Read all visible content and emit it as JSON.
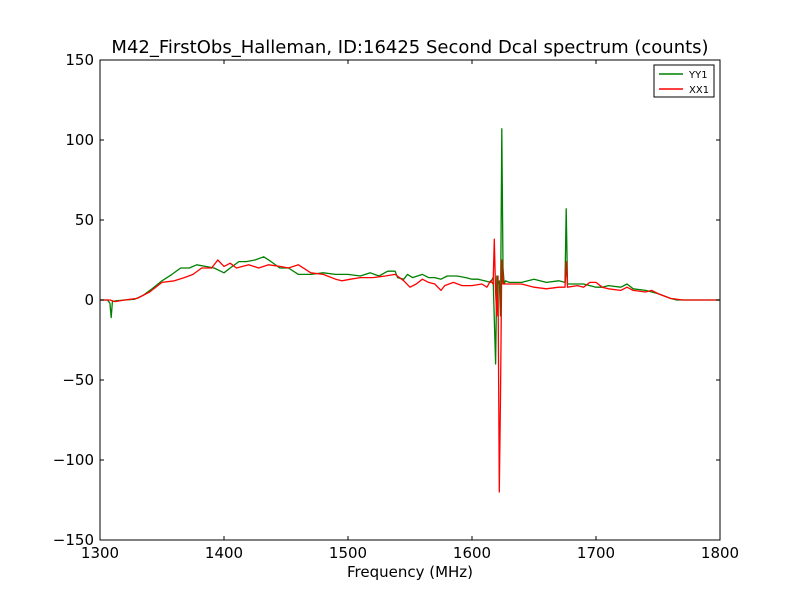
{
  "chart_data": {
    "type": "line",
    "title": "M42_FirstObs_Halleman, ID:16425 Second Dcal spectrum (counts)",
    "xlabel": "Frequency (MHz)",
    "ylabel": "",
    "xlim": [
      1300,
      1800
    ],
    "ylim": [
      -150,
      150
    ],
    "xticks": [
      1300,
      1400,
      1500,
      1600,
      1700,
      1800
    ],
    "yticks": [
      -150,
      -100,
      -50,
      0,
      50,
      100,
      150
    ],
    "grid": false,
    "legend_position": "top-right",
    "series": [
      {
        "name": "YY1",
        "color": "#008000",
        "points": [
          [
            1300,
            0
          ],
          [
            1306,
            0
          ],
          [
            1308,
            -2
          ],
          [
            1309,
            -11
          ],
          [
            1310,
            -1
          ],
          [
            1313,
            -0.5
          ],
          [
            1320,
            0
          ],
          [
            1328,
            0.5
          ],
          [
            1335,
            3
          ],
          [
            1342,
            7
          ],
          [
            1350,
            12
          ],
          [
            1358,
            16
          ],
          [
            1365,
            20
          ],
          [
            1372,
            20
          ],
          [
            1378,
            22
          ],
          [
            1385,
            21
          ],
          [
            1392,
            20
          ],
          [
            1400,
            17
          ],
          [
            1405,
            20
          ],
          [
            1412,
            24
          ],
          [
            1418,
            24
          ],
          [
            1425,
            25
          ],
          [
            1432,
            27
          ],
          [
            1438,
            24
          ],
          [
            1445,
            20
          ],
          [
            1452,
            20
          ],
          [
            1460,
            16
          ],
          [
            1470,
            16
          ],
          [
            1480,
            17
          ],
          [
            1490,
            16
          ],
          [
            1500,
            16
          ],
          [
            1510,
            15
          ],
          [
            1518,
            17
          ],
          [
            1525,
            15
          ],
          [
            1532,
            18
          ],
          [
            1538,
            18
          ],
          [
            1540,
            14
          ],
          [
            1545,
            13
          ],
          [
            1548,
            16
          ],
          [
            1552,
            14
          ],
          [
            1556,
            15
          ],
          [
            1560,
            16
          ],
          [
            1565,
            14
          ],
          [
            1570,
            14
          ],
          [
            1575,
            13
          ],
          [
            1580,
            15
          ],
          [
            1588,
            15
          ],
          [
            1595,
            14
          ],
          [
            1600,
            13
          ],
          [
            1605,
            13
          ],
          [
            1610,
            12
          ],
          [
            1615,
            11
          ],
          [
            1617,
            14
          ],
          [
            1619,
            -40
          ],
          [
            1620,
            15
          ],
          [
            1621,
            10
          ],
          [
            1622,
            12
          ],
          [
            1623,
            -10
          ],
          [
            1624,
            107
          ],
          [
            1625,
            20
          ],
          [
            1626,
            10
          ],
          [
            1627,
            12
          ],
          [
            1630,
            11
          ],
          [
            1640,
            11
          ],
          [
            1650,
            13
          ],
          [
            1660,
            11
          ],
          [
            1670,
            12
          ],
          [
            1675,
            11
          ],
          [
            1676,
            57
          ],
          [
            1677,
            10
          ],
          [
            1685,
            10
          ],
          [
            1690,
            10
          ],
          [
            1700,
            8
          ],
          [
            1705,
            8
          ],
          [
            1710,
            9
          ],
          [
            1720,
            8
          ],
          [
            1725,
            10
          ],
          [
            1730,
            7
          ],
          [
            1740,
            6
          ],
          [
            1745,
            5
          ],
          [
            1750,
            4
          ],
          [
            1760,
            1
          ],
          [
            1765,
            0
          ],
          [
            1770,
            0
          ],
          [
            1780,
            0
          ],
          [
            1790,
            0
          ],
          [
            1800,
            0
          ]
        ]
      },
      {
        "name": "XX1",
        "color": "#ff0000",
        "points": [
          [
            1300,
            0
          ],
          [
            1308,
            0
          ],
          [
            1312,
            -1
          ],
          [
            1320,
            0
          ],
          [
            1330,
            1
          ],
          [
            1340,
            5
          ],
          [
            1350,
            11
          ],
          [
            1360,
            12
          ],
          [
            1368,
            14
          ],
          [
            1375,
            16
          ],
          [
            1382,
            20
          ],
          [
            1390,
            20
          ],
          [
            1395,
            25
          ],
          [
            1400,
            21
          ],
          [
            1405,
            23
          ],
          [
            1410,
            20
          ],
          [
            1420,
            22
          ],
          [
            1428,
            20
          ],
          [
            1436,
            22
          ],
          [
            1445,
            21
          ],
          [
            1452,
            20
          ],
          [
            1460,
            22
          ],
          [
            1470,
            17
          ],
          [
            1480,
            16
          ],
          [
            1490,
            13
          ],
          [
            1495,
            12
          ],
          [
            1502,
            13
          ],
          [
            1510,
            14
          ],
          [
            1520,
            14
          ],
          [
            1530,
            15
          ],
          [
            1538,
            16
          ],
          [
            1545,
            12
          ],
          [
            1550,
            8
          ],
          [
            1555,
            10
          ],
          [
            1560,
            13
          ],
          [
            1565,
            11
          ],
          [
            1570,
            10
          ],
          [
            1575,
            6
          ],
          [
            1578,
            9
          ],
          [
            1585,
            11
          ],
          [
            1592,
            9
          ],
          [
            1600,
            9
          ],
          [
            1608,
            10
          ],
          [
            1612,
            8
          ],
          [
            1615,
            12
          ],
          [
            1617,
            10
          ],
          [
            1618,
            38
          ],
          [
            1619,
            5
          ],
          [
            1620,
            -10
          ],
          [
            1621,
            15
          ],
          [
            1622,
            -120
          ],
          [
            1623,
            -60
          ],
          [
            1624,
            25
          ],
          [
            1625,
            10
          ],
          [
            1626,
            10
          ],
          [
            1630,
            10
          ],
          [
            1640,
            10
          ],
          [
            1650,
            8
          ],
          [
            1660,
            7
          ],
          [
            1670,
            8
          ],
          [
            1675,
            8
          ],
          [
            1676,
            24
          ],
          [
            1677,
            8
          ],
          [
            1685,
            9
          ],
          [
            1690,
            8
          ],
          [
            1695,
            11
          ],
          [
            1700,
            11
          ],
          [
            1705,
            8
          ],
          [
            1710,
            7
          ],
          [
            1720,
            6
          ],
          [
            1725,
            8
          ],
          [
            1730,
            6
          ],
          [
            1740,
            5
          ],
          [
            1745,
            6
          ],
          [
            1750,
            4
          ],
          [
            1760,
            1
          ],
          [
            1770,
            0
          ],
          [
            1780,
            0
          ],
          [
            1790,
            0
          ],
          [
            1800,
            0
          ]
        ]
      }
    ]
  }
}
